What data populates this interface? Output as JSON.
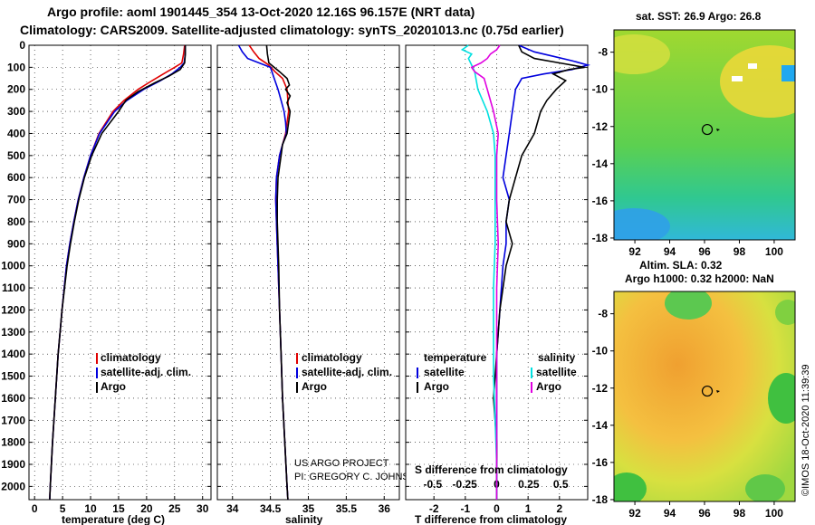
{
  "titles": {
    "line1": "Argo profile: aoml 1901445_354 13-Oct-2020 12.16S 96.157E (NRT data)",
    "line2": "Climatology: CARS2009. Satellite-adjusted climatology: synTS_20201013.nc (0.75d earlier)"
  },
  "colors": {
    "climatology": "#e00000",
    "satellite": "#0000dd",
    "argo": "#000000",
    "cyan": "#00e0e0",
    "magenta": "#e000e0"
  },
  "chart_data": [
    {
      "type": "line",
      "id": "temperature",
      "xlabel": "temperature (deg C)",
      "xlim": [
        -1,
        31.5
      ],
      "xticks": [
        0,
        5,
        10,
        15,
        20,
        25,
        30
      ],
      "ylim": [
        2060,
        0
      ],
      "yticks": [
        0,
        100,
        200,
        300,
        400,
        500,
        600,
        700,
        800,
        900,
        1000,
        1100,
        1200,
        1300,
        1400,
        1500,
        1600,
        1700,
        1800,
        1900,
        2000
      ],
      "legend": [
        "climatology",
        "satellite-adj. clim.",
        "Argo"
      ],
      "series": [
        {
          "name": "climatology",
          "color": "#e00000",
          "y": [
            0,
            40,
            80,
            100,
            130,
            160,
            200,
            250,
            300,
            400,
            500,
            600,
            700,
            800,
            900,
            1000,
            1200,
            1400,
            1600,
            1800,
            2000,
            2060
          ],
          "x": [
            26.8,
            26.6,
            26.3,
            25.0,
            23.0,
            21.0,
            18.5,
            16.0,
            14.0,
            11.5,
            10.0,
            8.8,
            7.8,
            7.0,
            6.3,
            5.7,
            4.9,
            4.2,
            3.7,
            3.2,
            2.8,
            2.7
          ]
        },
        {
          "name": "satellite-adj. clim.",
          "color": "#0000dd",
          "y": [
            0,
            40,
            80,
            100,
            130,
            160,
            200,
            250,
            300,
            400,
            500,
            600,
            700,
            800,
            900,
            1000,
            1200,
            1400,
            1600,
            1800,
            2000,
            2060
          ],
          "x": [
            26.9,
            26.9,
            26.7,
            26.0,
            24.5,
            22.5,
            19.5,
            16.5,
            14.3,
            11.6,
            10.0,
            8.8,
            7.8,
            7.0,
            6.3,
            5.7,
            4.9,
            4.2,
            3.7,
            3.2,
            2.8,
            2.7
          ]
        },
        {
          "name": "Argo",
          "color": "#000000",
          "y": [
            0,
            40,
            80,
            110,
            140,
            170,
            210,
            250,
            300,
            350,
            400,
            500,
            600,
            700,
            800,
            900,
            1000,
            1200,
            1400,
            1600,
            1800,
            2000,
            2060
          ],
          "x": [
            26.9,
            26.9,
            26.8,
            26.0,
            24.0,
            21.5,
            18.5,
            16.3,
            15.0,
            13.5,
            12.0,
            10.2,
            8.9,
            7.9,
            7.1,
            6.4,
            5.8,
            4.9,
            4.2,
            3.7,
            3.2,
            2.8,
            2.7
          ]
        }
      ]
    },
    {
      "type": "line",
      "id": "salinity",
      "xlabel": "salinity",
      "xlim": [
        33.8,
        36.2
      ],
      "xticks": [
        34,
        34.5,
        35,
        35.5,
        36
      ],
      "ylim": [
        2060,
        0
      ],
      "yticks": [
        0,
        100,
        200,
        300,
        400,
        500,
        600,
        700,
        800,
        900,
        1000,
        1100,
        1200,
        1300,
        1400,
        1500,
        1600,
        1700,
        1800,
        1900,
        2000
      ],
      "legend": [
        "climatology",
        "satellite-adj. clim.",
        "Argo"
      ],
      "series": [
        {
          "name": "climatology",
          "color": "#e00000",
          "y": [
            0,
            30,
            60,
            90,
            120,
            150,
            200,
            250,
            300,
            350,
            400,
            450,
            500,
            600,
            700,
            800,
            1000,
            1200,
            1400,
            1600,
            1800,
            2000,
            2060
          ],
          "x": [
            34.22,
            34.28,
            34.35,
            34.48,
            34.56,
            34.66,
            34.72,
            34.73,
            34.74,
            34.72,
            34.7,
            34.66,
            34.62,
            34.58,
            34.57,
            34.58,
            34.6,
            34.62,
            34.64,
            34.66,
            34.69,
            34.72,
            34.73
          ]
        },
        {
          "name": "satellite-adj. clim.",
          "color": "#0000dd",
          "y": [
            0,
            30,
            60,
            80,
            100,
            120,
            150,
            200,
            250,
            300,
            350,
            400,
            450,
            500,
            600,
            700,
            800,
            1000,
            1200,
            1400,
            1600,
            1800,
            2000,
            2060
          ],
          "x": [
            34.08,
            34.13,
            34.2,
            34.35,
            34.5,
            34.52,
            34.55,
            34.6,
            34.64,
            34.68,
            34.7,
            34.71,
            34.66,
            34.62,
            34.58,
            34.57,
            34.58,
            34.6,
            34.62,
            34.64,
            34.66,
            34.69,
            34.72,
            34.73
          ]
        },
        {
          "name": "Argo",
          "color": "#000000",
          "y": [
            0,
            40,
            80,
            100,
            120,
            150,
            180,
            200,
            230,
            260,
            300,
            350,
            400,
            450,
            500,
            600,
            700,
            800,
            1000,
            1200,
            1400,
            1600,
            1800,
            2000,
            2060
          ],
          "x": [
            34.45,
            34.46,
            34.48,
            34.55,
            34.62,
            34.72,
            34.75,
            34.7,
            34.76,
            34.72,
            34.76,
            34.74,
            34.72,
            34.66,
            34.64,
            34.6,
            34.59,
            34.59,
            34.61,
            34.62,
            34.64,
            34.66,
            34.69,
            34.72,
            34.73
          ]
        }
      ]
    },
    {
      "type": "line",
      "id": "difference",
      "xlabel": "T difference from climatology",
      "xlabel_upper": "S difference from climatology",
      "xlim": [
        -2.9,
        2.9
      ],
      "xticks": [
        -2,
        -1,
        0,
        1,
        2
      ],
      "xticks_upper": [
        "-0.5",
        "-0.25",
        "0",
        "0.25",
        "0.5"
      ],
      "ylim": [
        2060,
        0
      ],
      "yticks": [
        0,
        100,
        200,
        300,
        400,
        500,
        600,
        700,
        800,
        900,
        1000,
        1100,
        1200,
        1300,
        1400,
        1500,
        1600,
        1700,
        1800,
        1900,
        2000
      ],
      "legend_left_title": "temperature",
      "legend_right_title": "salinity",
      "legend_left": [
        "satellite",
        "Argo"
      ],
      "legend_right": [
        "satellite",
        "Argo"
      ],
      "series": [
        {
          "name": "temperature satellite",
          "color": "#0000dd",
          "y": [
            0,
            30,
            50,
            70,
            90,
            110,
            130,
            150,
            200,
            300,
            400,
            500,
            600,
            700,
            800,
            900,
            1000,
            1200,
            1400,
            1600,
            1800,
            2000,
            2060
          ],
          "x": [
            0.7,
            1.2,
            1.8,
            2.4,
            2.9,
            2.4,
            1.5,
            0.8,
            0.6,
            0.5,
            0.4,
            0.3,
            0.2,
            0.4,
            0.3,
            0.3,
            0.2,
            0.1,
            0.0,
            0.0,
            0.0,
            0.0,
            0.0
          ]
        },
        {
          "name": "temperature Argo",
          "color": "#000000",
          "y": [
            0,
            30,
            60,
            80,
            100,
            110,
            130,
            160,
            200,
            250,
            300,
            400,
            500,
            600,
            700,
            800,
            900,
            1000,
            1200,
            1400,
            1600,
            1800,
            2000,
            2060
          ],
          "x": [
            0.7,
            0.8,
            1.2,
            2.0,
            2.8,
            2.3,
            1.8,
            2.2,
            1.9,
            1.6,
            1.4,
            1.2,
            0.8,
            0.6,
            0.4,
            0.3,
            0.5,
            0.3,
            0.1,
            0.0,
            -0.1,
            0.0,
            0.0,
            0.0
          ]
        },
        {
          "name": "salinity satellite",
          "color": "#00e0e0",
          "y": [
            0,
            20,
            40,
            60,
            90,
            120,
            200,
            300,
            400,
            500,
            700,
            900,
            1100,
            1300,
            1500,
            1700,
            1900,
            2000,
            2060
          ],
          "x": [
            -0.9,
            -1.1,
            -0.8,
            -0.9,
            -0.8,
            -0.7,
            -0.6,
            -0.3,
            -0.1,
            -0.05,
            -0.05,
            -0.05,
            -0.1,
            -0.1,
            -0.1,
            -0.05,
            0.0,
            0.0,
            0.0
          ]
        },
        {
          "name": "salinity Argo",
          "color": "#e000e0",
          "y": [
            0,
            20,
            40,
            60,
            80,
            100,
            120,
            150,
            200,
            300,
            400,
            500,
            700,
            900,
            1100,
            1300,
            1500,
            1700,
            1900,
            2000,
            2060
          ],
          "x": [
            0.1,
            0.0,
            -0.2,
            -0.3,
            -0.5,
            -0.8,
            -0.7,
            -0.4,
            -0.3,
            -0.1,
            0.05,
            0.0,
            0.0,
            0.05,
            0.0,
            0.0,
            0.0,
            0.0,
            0.0,
            0.0,
            0.0
          ]
        }
      ]
    },
    {
      "type": "heatmap",
      "id": "sst-map",
      "caption": "sat. SST: 26.9 Argo: 26.8",
      "xticks": [
        "92",
        "94",
        "96",
        "98",
        "100"
      ],
      "yticks": [
        "-8",
        "-10",
        "-12",
        "-14",
        "-16",
        "-18"
      ],
      "xlim": [
        90.8,
        101.2
      ],
      "ylim": [
        -18.1,
        -6.8
      ],
      "marker": {
        "lon": 96.157,
        "lat": -12.16
      }
    },
    {
      "type": "heatmap",
      "id": "sla-map",
      "caption_line1": "Altim. SLA: 0.32",
      "caption_line2": "Argo h1000: 0.32 h2000: NaN",
      "xticks": [
        "92",
        "94",
        "96",
        "98",
        "100"
      ],
      "yticks": [
        "-8",
        "-10",
        "-12",
        "-14",
        "-16",
        "-18"
      ],
      "xlim": [
        90.8,
        101.2
      ],
      "ylim": [
        -18.1,
        -6.8
      ],
      "marker": {
        "lon": 96.157,
        "lat": -12.16
      }
    }
  ],
  "credits": {
    "line1": "US ARGO PROJECT",
    "line2": "PI: GREGORY C. JOHNSON"
  },
  "watermark": "©IMOS 18-Oct-2020 11:39:39"
}
